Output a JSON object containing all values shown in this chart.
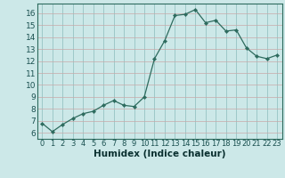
{
  "x": [
    0,
    1,
    2,
    3,
    4,
    5,
    6,
    7,
    8,
    9,
    10,
    11,
    12,
    13,
    14,
    15,
    16,
    17,
    18,
    19,
    20,
    21,
    22,
    23
  ],
  "y": [
    6.8,
    6.1,
    6.7,
    7.2,
    7.6,
    7.8,
    8.3,
    8.7,
    8.3,
    8.2,
    9.0,
    12.2,
    13.7,
    15.8,
    15.9,
    16.3,
    15.2,
    15.4,
    14.5,
    14.6,
    13.1,
    12.4,
    12.2,
    12.5
  ],
  "line_color": "#2d6b5e",
  "marker": "D",
  "marker_size": 2.2,
  "bg_color": "#cce8e8",
  "plot_bg_color": "#cce8e8",
  "vgrid_color": "#8bbcbc",
  "hgrid_color": "#c8a8a8",
  "xlabel": "Humidex (Indice chaleur)",
  "xlim": [
    -0.5,
    23.5
  ],
  "ylim": [
    5.5,
    16.8
  ],
  "yticks": [
    6,
    7,
    8,
    9,
    10,
    11,
    12,
    13,
    14,
    15,
    16
  ],
  "xtick_labels": [
    "0",
    "1",
    "2",
    "3",
    "4",
    "5",
    "6",
    "7",
    "8",
    "9",
    "10",
    "11",
    "12",
    "13",
    "14",
    "15",
    "16",
    "17",
    "18",
    "19",
    "20",
    "21",
    "22",
    "23"
  ],
  "tick_color": "#1a5050",
  "label_color": "#0a3030",
  "font_size": 6.5,
  "xlabel_fontsize": 7.5,
  "spine_color": "#2d6b5e",
  "bottom_bar_color": "#2d6b5e"
}
